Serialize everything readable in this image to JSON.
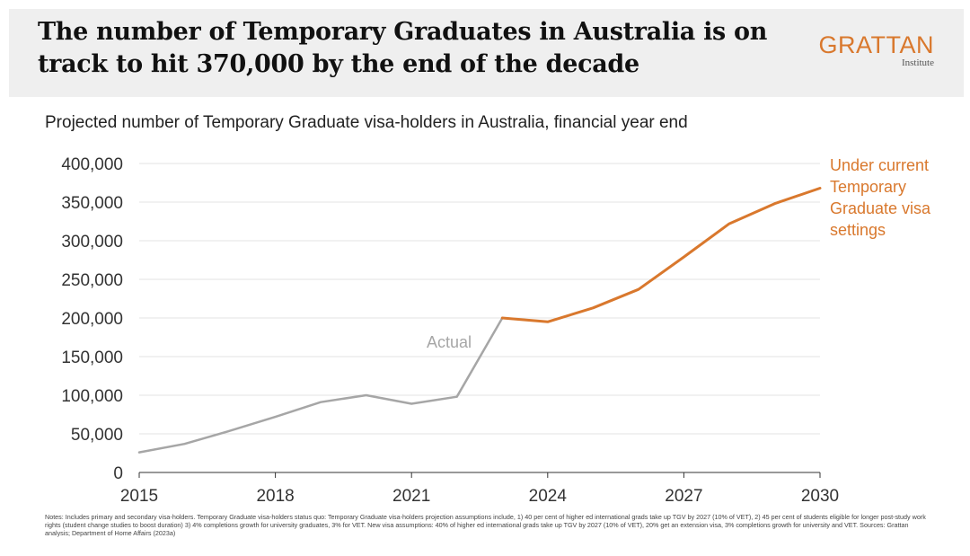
{
  "header": {
    "title": "The number of Temporary Graduates in Australia is on track to hit 370,000 by the end of the decade",
    "logo_main": "GRATTAN",
    "logo_sub": "Institute"
  },
  "subtitle": "Projected number of Temporary Graduate visa-holders in Australia, financial year end",
  "chart_data": {
    "type": "line",
    "title": "Projected number of Temporary Graduate visa-holders in Australia, financial year end",
    "xlabel": "",
    "ylabel": "",
    "xlim": [
      2015,
      2030
    ],
    "ylim": [
      0,
      400000
    ],
    "x_ticks": [
      "2015",
      "2018",
      "2021",
      "2024",
      "2027",
      "2030"
    ],
    "y_ticks": [
      "0",
      "50,000",
      "100,000",
      "150,000",
      "200,000",
      "250,000",
      "300,000",
      "350,000",
      "400,000"
    ],
    "grid": true,
    "series": [
      {
        "name": "Actual",
        "color": "#a6a6a6",
        "x": [
          2015,
          2016,
          2017,
          2018,
          2019,
          2020,
          2021,
          2022,
          2023
        ],
        "values": [
          26000,
          37000,
          54000,
          72000,
          91000,
          100000,
          89000,
          98000,
          200000
        ]
      },
      {
        "name": "Under current Temporary Graduate visa settings",
        "label_lines": [
          "Under current",
          "Temporary",
          "Graduate visa",
          "settings"
        ],
        "color": "#d9782d",
        "x": [
          2023,
          2024,
          2025,
          2026,
          2027,
          2028,
          2029,
          2030
        ],
        "values": [
          200000,
          195000,
          213000,
          237000,
          279000,
          322000,
          348000,
          368000
        ]
      }
    ]
  },
  "notes": "Notes: Includes primary and secondary visa-holders. Temporary Graduate visa-holders status quo: Temporary Graduate visa-holders projection assumptions include, 1) 40 per cent of higher ed international grads take up TGV by 2027 (10% of VET), 2) 45 per cent of students eligible for longer post-study work rights (student change studies to boost duration) 3) 4% completions growth for university graduates, 3% for VET. New visa assumptions: 40% of higher ed international grads take up TGV by 2027 (10% of VET), 20% get an extension visa, 3% completions growth for university and VET.  Sources: Grattan analysis; Department of Home Affairs (2023a)"
}
